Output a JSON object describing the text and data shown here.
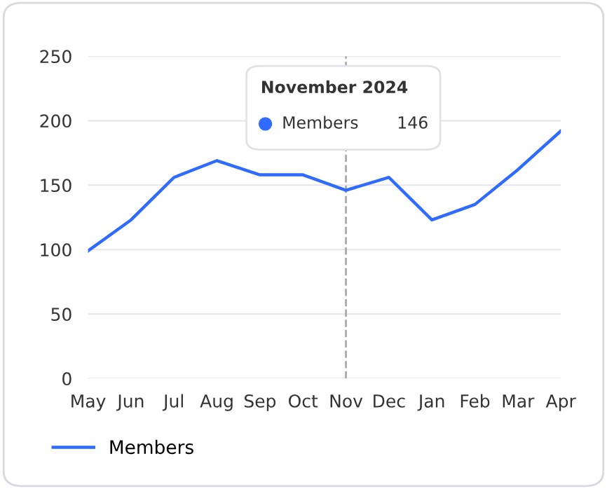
{
  "chart_data": {
    "type": "line",
    "categories": [
      "May",
      "Jun",
      "Jul",
      "Aug",
      "Sep",
      "Oct",
      "Nov",
      "Dec",
      "Jan",
      "Feb",
      "Mar",
      "Apr"
    ],
    "series": [
      {
        "name": "Members",
        "color": "#2f6bff",
        "values": [
          99,
          123,
          156,
          169,
          158,
          158,
          146,
          156,
          123,
          135,
          162,
          192
        ]
      }
    ],
    "annotations": [
      "November 2024",
      "Members",
      "146"
    ],
    "ref_lines": [
      {
        "axis": "x",
        "value": "Nov",
        "color": "#aaaaaa",
        "line_style": "dashed"
      }
    ],
    "ylim": [
      0,
      250
    ],
    "yticks": [
      0,
      50,
      100,
      150,
      200,
      250
    ],
    "grid": "y",
    "legend": "bottom left",
    "marker": "none",
    "line_style": "solid"
  }
}
